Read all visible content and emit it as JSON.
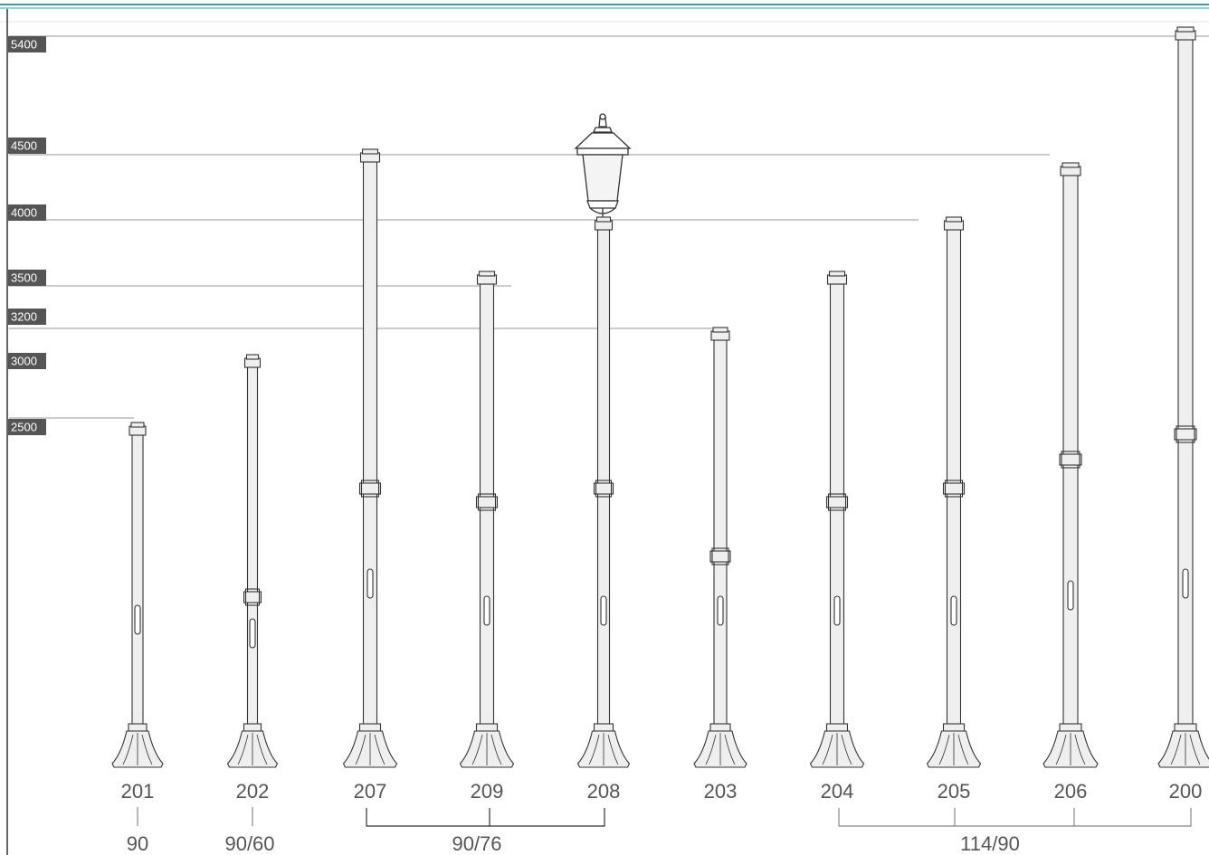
{
  "height_labels": [
    "5400",
    "4500",
    "4000",
    "3500",
    "3200",
    "3000",
    "2500"
  ],
  "models": [
    "201",
    "202",
    "207",
    "209",
    "208",
    "203",
    "204",
    "205",
    "206",
    "200"
  ],
  "diameters": [
    "90",
    "90/60",
    "90/76",
    "114/90"
  ]
}
